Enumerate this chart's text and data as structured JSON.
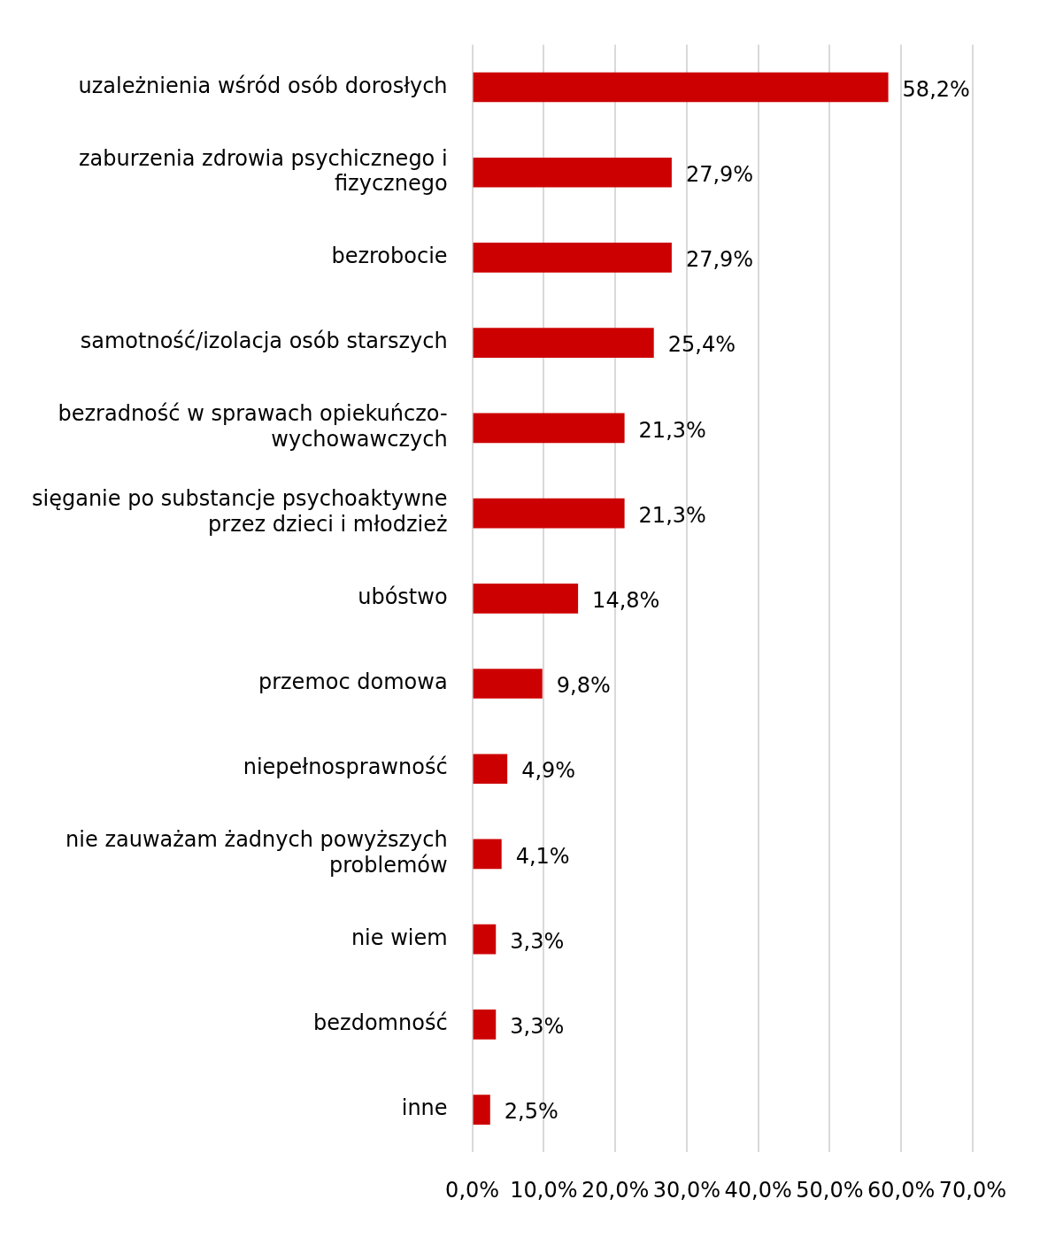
{
  "chart_data": {
    "type": "bar",
    "orientation": "horizontal",
    "categories": [
      "uzależnienia wśród osób dorosłych",
      "zaburzenia zdrowia psychicznego i fizycznego",
      "bezrobocie",
      "samotność/izolacja osób starszych",
      "bezradność w sprawach opiekuńczo-wychowawczych",
      "sięganie po substancje psychoaktywne przez dzieci i młodzież",
      "ubóstwo",
      "przemoc domowa",
      "niepełnosprawność",
      "nie zauważam żadnych powyższych problemów",
      "nie wiem",
      "bezdomność",
      "inne"
    ],
    "values": [
      58.2,
      27.9,
      27.9,
      25.4,
      21.3,
      21.3,
      14.8,
      9.8,
      4.9,
      4.1,
      3.3,
      3.3,
      2.5
    ],
    "value_labels": [
      "58,2%",
      "27,9%",
      "27,9%",
      "25,4%",
      "21,3%",
      "21,3%",
      "14,8%",
      "9,8%",
      "4,9%",
      "4,1%",
      "3,3%",
      "3,3%",
      "2,5%"
    ],
    "color": "#cc0000",
    "xlim": [
      0,
      70
    ],
    "xticks": [
      {
        "value": 0,
        "label": "0,0%"
      },
      {
        "value": 10,
        "label": "10,0%"
      },
      {
        "value": 20,
        "label": "20,0%"
      },
      {
        "value": 30,
        "label": "30,0%"
      },
      {
        "value": 40,
        "label": "40,0%"
      },
      {
        "value": 50,
        "label": "50,0%"
      },
      {
        "value": 60,
        "label": "60,0%"
      },
      {
        "value": 70,
        "label": "70,0%"
      }
    ],
    "grid": "x",
    "legend": false
  }
}
